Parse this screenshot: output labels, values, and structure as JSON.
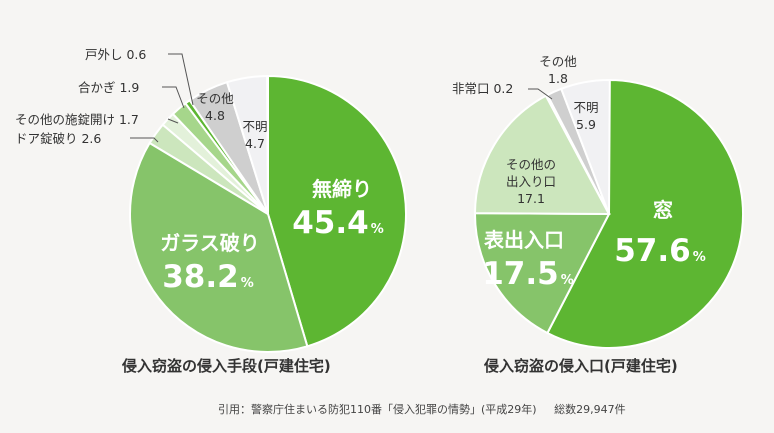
{
  "chart_data": [
    {
      "type": "pie",
      "title": "侵入窃盗の侵入手段(戸建住宅)",
      "slices": [
        {
          "label": "無締り",
          "value": 45.4,
          "color": "#5db632"
        },
        {
          "label": "ガラス破り",
          "value": 38.2,
          "color": "#86c46a"
        },
        {
          "label": "ドア錠破り",
          "value": 2.6,
          "color": "#cce6bd"
        },
        {
          "label": "その他の施錠開け",
          "value": 1.7,
          "color": "#e3f1da"
        },
        {
          "label": "合かぎ",
          "value": 1.9,
          "color": "#a6d68b"
        },
        {
          "label": "戸外し",
          "value": 0.6,
          "color": "#5db632"
        },
        {
          "label": "その他",
          "value": 4.8,
          "color": "#cfcfcf"
        },
        {
          "label": "不明",
          "value": 4.7,
          "color": "#f1f1f3"
        }
      ]
    },
    {
      "type": "pie",
      "title": "侵入窃盗の侵入口(戸建住宅)",
      "slices": [
        {
          "label": "窓",
          "value": 57.6,
          "color": "#5db632"
        },
        {
          "label": "表出入口",
          "value": 17.5,
          "color": "#86c46a"
        },
        {
          "label": "その他の出入り口",
          "value": 17.1,
          "color": "#cce6bd"
        },
        {
          "label": "非常口",
          "value": 0.2,
          "color": "#e3f1da"
        },
        {
          "label": "その他",
          "value": 1.8,
          "color": "#cfcfcf"
        },
        {
          "label": "不明",
          "value": 5.9,
          "color": "#f1f1f3"
        }
      ]
    }
  ],
  "source": {
    "citation": "引用：警察庁住まいる防犯110番「侵入犯罪の情勢」(平成29年)",
    "total": "総数29,947件"
  },
  "percent_unit": "%"
}
